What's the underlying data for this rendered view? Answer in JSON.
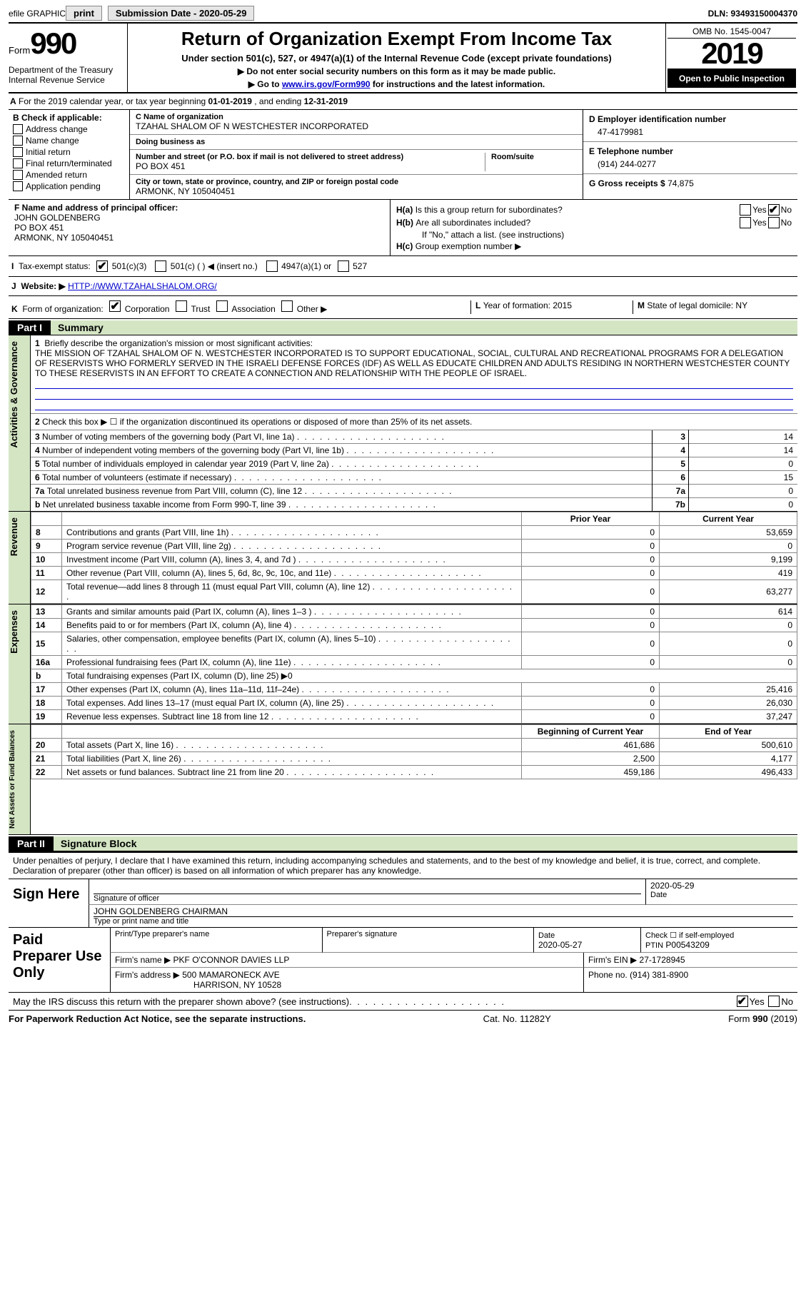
{
  "topbar": {
    "efile": "efile GRAPHIC",
    "print": "print",
    "submission": "Submission Date - 2020-05-29",
    "dln": "DLN: 93493150004370"
  },
  "header": {
    "formword": "Form",
    "formno": "990",
    "dept": "Department of the Treasury\nInternal Revenue Service",
    "title": "Return of Organization Exempt From Income Tax",
    "subtitle": "Under section 501(c), 527, or 4947(a)(1) of the Internal Revenue Code (except private foundations)",
    "note1": "▶ Do not enter social security numbers on this form as it may be made public.",
    "note2_pre": "▶ Go to ",
    "note2_link": "www.irs.gov/Form990",
    "note2_post": " for instructions and the latest information.",
    "omb": "OMB No. 1545-0047",
    "year": "2019",
    "otp": "Open to Public Inspection"
  },
  "lineA": {
    "pre": "A",
    "text1": " For the 2019 calendar year, or tax year beginning ",
    "d1": "01-01-2019",
    "text2": " , and ending ",
    "d2": "12-31-2019"
  },
  "boxB": {
    "title": "B Check if applicable:",
    "opts": [
      "Address change",
      "Name change",
      "Initial return",
      "Final return/terminated",
      "Amended return",
      "Application pending"
    ]
  },
  "boxC": {
    "ctag": "C Name of organization",
    "name": "TZAHAL SHALOM OF N WESTCHESTER INCORPORATED",
    "dba_tag": "Doing business as",
    "dba": "",
    "addr_tag": "Number and street (or P.O. box if mail is not delivered to street address)",
    "addr": "PO BOX 451",
    "room_tag": "Room/suite",
    "room": "",
    "city_tag": "City or town, state or province, country, and ZIP or foreign postal code",
    "city": "ARMONK, NY  105040451"
  },
  "boxD": {
    "tag": "D Employer identification number",
    "val": "47-4179981",
    "etag": "E Telephone number",
    "eval": "(914) 244-0277",
    "gtag": "G Gross receipts $",
    "gval": "74,875"
  },
  "boxF": {
    "tag": "F  Name and address of principal officer:",
    "name": "JOHN GOLDENBERG",
    "addr1": "PO BOX 451",
    "addr2": "ARMONK, NY  105040451"
  },
  "boxH": {
    "ha_lab": "H(a)",
    "ha_txt": "Is this a group return for subordinates?",
    "hb_lab": "H(b)",
    "hb_txt": "Are all subordinates included?",
    "hb_note": "If \"No,\" attach a list. (see instructions)",
    "hc_lab": "H(c)",
    "hc_txt": "Group exemption number ▶",
    "yes": "Yes",
    "no": "No"
  },
  "lineI": {
    "lab": "I",
    "txt": "Tax-exempt status:",
    "o1": "501(c)(3)",
    "o2": "501(c) (   ) ◀ (insert no.)",
    "o3": "4947(a)(1) or",
    "o4": "527"
  },
  "lineJ": {
    "lab": "J",
    "txt": "Website: ▶",
    "url": "HTTP://WWW.TZAHALSHALOM.ORG/"
  },
  "lineK": {
    "lab": "K",
    "txt": "Form of organization:",
    "o1": "Corporation",
    "o2": "Trust",
    "o3": "Association",
    "o4": "Other ▶"
  },
  "lineL": {
    "lab": "L",
    "txt": "Year of formation:",
    "val": "2015"
  },
  "lineM": {
    "lab": "M",
    "txt": "State of legal domicile:",
    "val": "NY"
  },
  "part1": {
    "label": "Part I",
    "title": "Summary"
  },
  "mission": {
    "n": "1",
    "lab": "Briefly describe the organization's mission or most significant activities:",
    "txt": "THE MISSION OF TZAHAL SHALOM OF N. WESTCHESTER INCORPORATED IS TO SUPPORT EDUCATIONAL, SOCIAL, CULTURAL AND RECREATIONAL PROGRAMS FOR A DELEGATION OF RESERVISTS WHO FORMERLY SERVED IN THE ISRAELI DEFENSE FORCES (IDF) AS WELL AS EDUCATE CHILDREN AND ADULTS RESIDING IN NORTHERN WESTCHESTER COUNTY TO THESE RESERVISTS IN AN EFFORT TO CREATE A CONNECTION AND RELATIONSHIP WITH THE PEOPLE OF ISRAEL."
  },
  "side_ag": "Activities & Governance",
  "sumlines": {
    "l2": {
      "n": "2",
      "txt": "Check this box ▶ ☐ if the organization discontinued its operations or disposed of more than 25% of its net assets."
    },
    "l3": {
      "n": "3",
      "txt": "Number of voting members of the governing body (Part VI, line 1a)",
      "lab": "3",
      "val": "14"
    },
    "l4": {
      "n": "4",
      "txt": "Number of independent voting members of the governing body (Part VI, line 1b)",
      "lab": "4",
      "val": "14"
    },
    "l5": {
      "n": "5",
      "txt": "Total number of individuals employed in calendar year 2019 (Part V, line 2a)",
      "lab": "5",
      "val": "0"
    },
    "l6": {
      "n": "6",
      "txt": "Total number of volunteers (estimate if necessary)",
      "lab": "6",
      "val": "15"
    },
    "l7a": {
      "n": "7a",
      "txt": "Total unrelated business revenue from Part VIII, column (C), line 12",
      "lab": "7a",
      "val": "0"
    },
    "l7b": {
      "n": "b",
      "txt": "Net unrelated business taxable income from Form 990-T, line 39",
      "lab": "7b",
      "val": "0"
    }
  },
  "side_rev": "Revenue",
  "rev_hdr": {
    "prior": "Prior Year",
    "current": "Current Year"
  },
  "revlines": [
    {
      "n": "8",
      "txt": "Contributions and grants (Part VIII, line 1h)",
      "p": "0",
      "c": "53,659"
    },
    {
      "n": "9",
      "txt": "Program service revenue (Part VIII, line 2g)",
      "p": "0",
      "c": "0"
    },
    {
      "n": "10",
      "txt": "Investment income (Part VIII, column (A), lines 3, 4, and 7d )",
      "p": "0",
      "c": "9,199"
    },
    {
      "n": "11",
      "txt": "Other revenue (Part VIII, column (A), lines 5, 6d, 8c, 9c, 10c, and 11e)",
      "p": "0",
      "c": "419"
    },
    {
      "n": "12",
      "txt": "Total revenue—add lines 8 through 11 (must equal Part VIII, column (A), line 12)",
      "p": "0",
      "c": "63,277"
    }
  ],
  "side_exp": "Expenses",
  "explines": [
    {
      "n": "13",
      "txt": "Grants and similar amounts paid (Part IX, column (A), lines 1–3 )",
      "p": "0",
      "c": "614"
    },
    {
      "n": "14",
      "txt": "Benefits paid to or for members (Part IX, column (A), line 4)",
      "p": "0",
      "c": "0"
    },
    {
      "n": "15",
      "txt": "Salaries, other compensation, employee benefits (Part IX, column (A), lines 5–10)",
      "p": "0",
      "c": "0"
    },
    {
      "n": "16a",
      "txt": "Professional fundraising fees (Part IX, column (A), line 11e)",
      "p": "0",
      "c": "0"
    },
    {
      "n": "b",
      "txt": "Total fundraising expenses (Part IX, column (D), line 25) ▶0",
      "p": "",
      "c": "",
      "noval": true
    },
    {
      "n": "17",
      "txt": "Other expenses (Part IX, column (A), lines 11a–11d, 11f–24e)",
      "p": "0",
      "c": "25,416"
    },
    {
      "n": "18",
      "txt": "Total expenses. Add lines 13–17 (must equal Part IX, column (A), line 25)",
      "p": "0",
      "c": "26,030"
    },
    {
      "n": "19",
      "txt": "Revenue less expenses. Subtract line 18 from line 12",
      "p": "0",
      "c": "37,247"
    }
  ],
  "side_net": "Net Assets or Fund Balances",
  "net_hdr": {
    "prior": "Beginning of Current Year",
    "current": "End of Year"
  },
  "netlines": [
    {
      "n": "20",
      "txt": "Total assets (Part X, line 16)",
      "p": "461,686",
      "c": "500,610"
    },
    {
      "n": "21",
      "txt": "Total liabilities (Part X, line 26)",
      "p": "2,500",
      "c": "4,177"
    },
    {
      "n": "22",
      "txt": "Net assets or fund balances. Subtract line 21 from line 20",
      "p": "459,186",
      "c": "496,433"
    }
  ],
  "part2": {
    "label": "Part II",
    "title": "Signature Block"
  },
  "sig": {
    "pen": "Under penalties of perjury, I declare that I have examined this return, including accompanying schedules and statements, and to the best of my knowledge and belief, it is true, correct, and complete. Declaration of preparer (other than officer) is based on all information of which preparer has any knowledge.",
    "signhere": "Sign Here",
    "sig_lab": "Signature of officer",
    "date_lab": "Date",
    "date_val": "2020-05-29",
    "name": "JOHN GOLDENBERG CHAIRMAN",
    "name_lab": "Type or print name and title"
  },
  "paid": {
    "label": "Paid Preparer Use Only",
    "pt_name_lab": "Print/Type preparer's name",
    "pt_sig_lab": "Preparer's signature",
    "pdate_lab": "Date",
    "pdate": "2020-05-27",
    "self_lab": "Check ☐ if self-employed",
    "ptin_lab": "PTIN",
    "ptin": "P00543209",
    "firmname_lab": "Firm's name    ▶",
    "firmname": "PKF O'CONNOR DAVIES LLP",
    "firmein_lab": "Firm's EIN ▶",
    "firmein": "27-1728945",
    "firmaddr_lab": "Firm's address ▶",
    "firmaddr1": "500 MAMARONECK AVE",
    "firmaddr2": "HARRISON, NY  10528",
    "firmphone_lab": "Phone no.",
    "firmphone": "(914) 381-8900"
  },
  "may": {
    "txt": "May the IRS discuss this return with the preparer shown above? (see instructions)",
    "yes": "Yes",
    "no": "No"
  },
  "foot": {
    "l": "For Paperwork Reduction Act Notice, see the separate instructions.",
    "m": "Cat. No. 11282Y",
    "r": "Form 990 (2019)"
  }
}
